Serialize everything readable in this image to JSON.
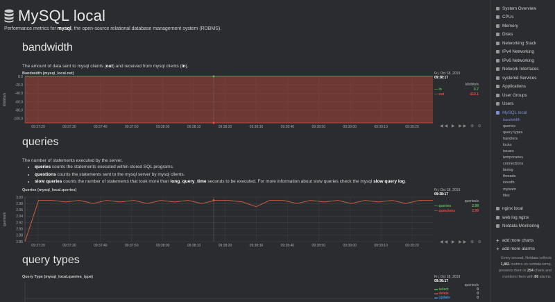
{
  "header": {
    "title": "MySQL local",
    "subtitle_prefix": "Performance metrics for ",
    "subtitle_bold": "mysql",
    "subtitle_suffix": ", the open-source relational database management system (RDBMS)."
  },
  "sections": {
    "bandwidth": {
      "title": "bandwidth",
      "desc_a": "The amount of data sent to mysql clients (",
      "desc_b": "out",
      "desc_c": ") and received from mysql clients (",
      "desc_d": "in",
      "desc_e": ")."
    },
    "queries": {
      "title": "queries",
      "desc": "The number of statements executed by the server.",
      "b1_bold": "queries",
      "b1_text": " counts the statements executed within stored SQL programs.",
      "b2_bold": "questions",
      "b2_text": " counts the statements sent to the mysql server by mysql clients.",
      "b3_bold": "slow queries",
      "b3_text_a": " counts the number of statements that took more than ",
      "b3_bold2": "long_query_time",
      "b3_text_b": " seconds to be executed. For more information about slow queries check the mysql ",
      "b3_bold3": "slow query log",
      "b3_text_c": "."
    },
    "query_types": {
      "title": "query types"
    }
  },
  "charts": {
    "bandwidth": {
      "title": "Bandwidth (mysql_local.net)",
      "date": "Fri, Oct 18, 2019",
      "time": "09:38:17",
      "units": "kilobits/s",
      "ylabel": "kilobits/s",
      "legend": [
        {
          "name": "in",
          "value": "0.7",
          "color": "#5cb85c"
        },
        {
          "name": "out",
          "value": "-112.1",
          "color": "#e74c3c"
        }
      ],
      "nav": "◀◀ ▶ ▶▶ ⊕ ⊖"
    },
    "queries": {
      "title": "Queries (mysql_local.queries)",
      "date": "Fri, Oct 18, 2019",
      "time": "09:38:17",
      "units": "queries/s",
      "ylabel": "queries/s",
      "legend": [
        {
          "name": "queries",
          "value": "2.99",
          "color": "#5cb85c"
        },
        {
          "name": "questions",
          "value": "2.99",
          "color": "#e74c3c"
        }
      ],
      "nav": "◀◀ ▶ ▶▶ ⊕ ⊖"
    },
    "query_types": {
      "title": "Query Type (mysql_local.queries_type)",
      "date": "Fri, Oct 18, 2019",
      "time": "09:38:17",
      "units": "queries/s",
      "legend": [
        {
          "name": "select",
          "value": "0",
          "color": "#5cb85c"
        },
        {
          "name": "delete",
          "value": "0",
          "color": "#e74c3c"
        },
        {
          "name": "update",
          "value": "0",
          "color": "#4a90e2"
        }
      ]
    }
  },
  "chart_data": [
    {
      "type": "area",
      "title": "Bandwidth (mysql_local.net)",
      "ylabel": "kilobits/s",
      "ylim": [
        -110,
        0
      ],
      "y_ticks": [
        "0.0",
        "-20.0",
        "-40.0",
        "-60.0",
        "-80.0",
        "-100.0"
      ],
      "x_ticks": [
        "09:37:20",
        "09:37:30",
        "09:37:40",
        "09:37:50",
        "09:38:00",
        "09:38:10",
        "09:38:20",
        "09:38:30",
        "09:38:40",
        "09:38:50",
        "09:39:00",
        "09:39:10",
        "09:39:20"
      ],
      "series": [
        {
          "name": "in",
          "color": "#5cb85c",
          "value": 0.7
        },
        {
          "name": "out",
          "color": "#e74c3c",
          "value": -112.1
        }
      ]
    },
    {
      "type": "line",
      "title": "Queries (mysql_local.queries)",
      "ylabel": "queries/s",
      "ylim": [
        2.86,
        3.0
      ],
      "y_ticks": [
        "3.00",
        "2.98",
        "2.96",
        "2.94",
        "2.92",
        "2.90",
        "2.88",
        "2.86"
      ],
      "x_ticks": [
        "09:37:20",
        "09:37:30",
        "09:37:40",
        "09:37:50",
        "09:38:00",
        "09:38:10",
        "09:38:20",
        "09:38:30",
        "09:38:40",
        "09:38:50",
        "09:39:00",
        "09:39:10",
        "09:39:20"
      ],
      "series": [
        {
          "name": "queries",
          "color": "#5cb85c",
          "values": [
            2.86,
            2.99,
            2.99,
            2.985,
            2.99,
            2.98,
            2.99,
            2.985,
            2.99,
            2.98,
            2.99,
            2.985,
            2.99,
            2.98,
            2.99,
            2.99,
            2.985,
            2.97,
            2.99,
            2.99,
            2.98,
            2.99,
            2.985,
            2.99,
            2.98,
            2.99,
            2.985,
            2.99,
            2.98,
            2.99,
            2.99
          ]
        },
        {
          "name": "questions",
          "color": "#e74c3c",
          "values": [
            2.86,
            2.99,
            2.99,
            2.985,
            2.99,
            2.98,
            2.99,
            2.985,
            2.99,
            2.98,
            2.99,
            2.985,
            2.99,
            2.98,
            2.99,
            2.99,
            2.985,
            2.97,
            2.99,
            2.99,
            2.98,
            2.99,
            2.985,
            2.99,
            2.98,
            2.99,
            2.985,
            2.99,
            2.98,
            2.99,
            2.99
          ]
        }
      ]
    }
  ],
  "sidebar": {
    "items": [
      {
        "label": "System Overview",
        "active": false
      },
      {
        "label": "CPUs",
        "active": false
      },
      {
        "label": "Memory",
        "active": false
      },
      {
        "label": "Disks",
        "active": false
      },
      {
        "label": "Networking Stack",
        "active": false
      },
      {
        "label": "IPv4 Networking",
        "active": false
      },
      {
        "label": "IPv6 Networking",
        "active": false
      },
      {
        "label": "Network Interfaces",
        "active": false
      },
      {
        "label": "systemd Services",
        "active": false
      },
      {
        "label": "Applications",
        "active": false
      },
      {
        "label": "User Groups",
        "active": false
      },
      {
        "label": "Users",
        "active": false
      },
      {
        "label": "MySQL local",
        "active": true
      }
    ],
    "subitems": [
      "bandwidth",
      "queries",
      "query types",
      "handlers",
      "locks",
      "issues",
      "temporaries",
      "connections",
      "binlog",
      "threads",
      "innodb",
      "myisam",
      "files"
    ],
    "items2": [
      {
        "label": "nginx local"
      },
      {
        "label": "web log nginx"
      },
      {
        "label": "Netdata Monitoring"
      }
    ],
    "add_charts": "add more charts",
    "add_alarms": "add more alarms",
    "footer_a": "Every second, Netdata collects ",
    "footer_b": "1,861",
    "footer_c": " metrics on netdata-temp, presents them in ",
    "footer_d": "254",
    "footer_e": " charts and monitors them with ",
    "footer_f": "86",
    "footer_g": " alarms."
  }
}
